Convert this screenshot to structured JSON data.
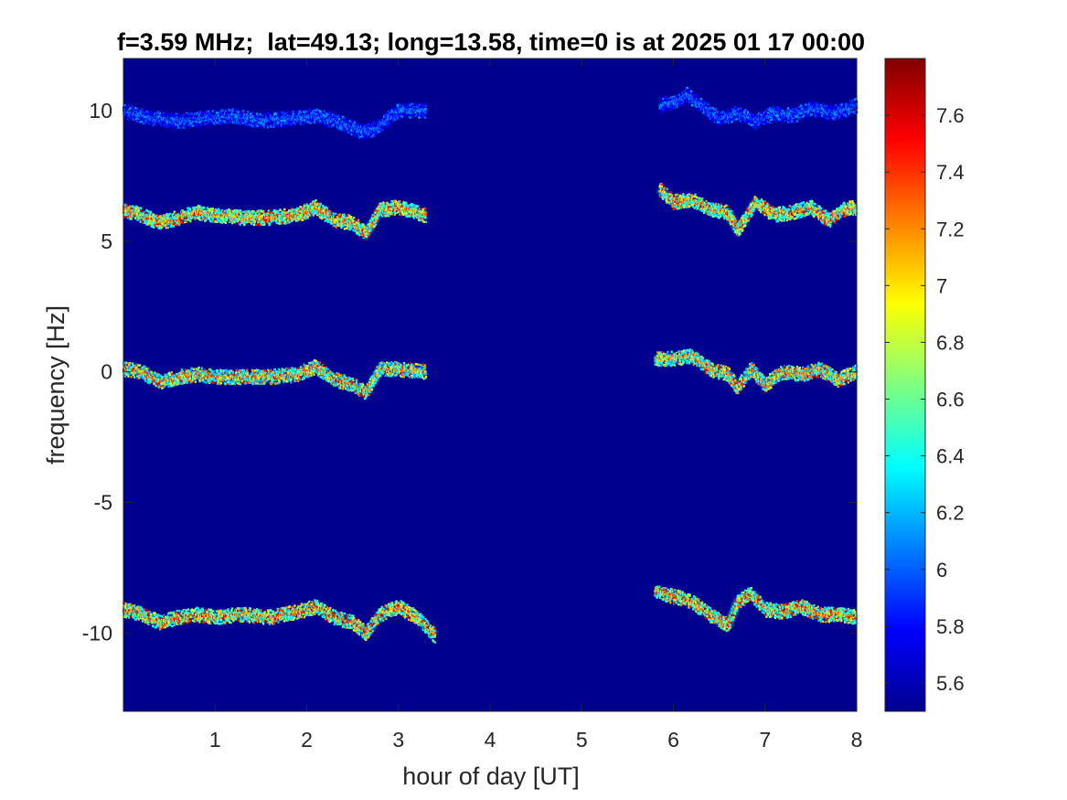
{
  "chart_data": {
    "type": "heatmap",
    "title": "f=3.59 MHz;  lat=49.13; long=13.58, time=0 is at 2025 01 17 00:00",
    "xlabel": "hour of day [UT]",
    "ylabel": "frequency [Hz]",
    "xlim": [
      0,
      8
    ],
    "ylim": [
      -13,
      12
    ],
    "x_ticks": [
      1,
      2,
      3,
      4,
      5,
      6,
      7,
      8
    ],
    "x_tick_labels": [
      "1",
      "2",
      "3",
      "4",
      "5",
      "6",
      "7",
      "8"
    ],
    "y_ticks": [
      10,
      5,
      0,
      -5,
      -10
    ],
    "y_tick_labels": [
      "10",
      "5",
      "0",
      "-5",
      "-10"
    ],
    "colorbar": {
      "colormap": "jet",
      "clim": [
        5.5,
        7.8
      ],
      "ticks": [
        7.6,
        7.4,
        7.2,
        7,
        6.8,
        6.6,
        6.4,
        6.2,
        6,
        5.8,
        5.6
      ],
      "tick_labels": [
        "7.6",
        "7.4",
        "7.2",
        "7",
        "6.8",
        "6.6",
        "6.4",
        "6.2",
        "6",
        "5.8",
        "5.6"
      ]
    },
    "background_value": 5.5,
    "traces": [
      {
        "segment": "early",
        "x_range": [
          0,
          3.3
        ],
        "intensity_range": [
          5.7,
          6.2
        ],
        "x": [
          0,
          0.3,
          0.6,
          0.9,
          1.2,
          1.5,
          1.8,
          2.1,
          2.4,
          2.6,
          2.75,
          3.0,
          3.3
        ],
        "y": [
          10.0,
          9.7,
          9.6,
          9.7,
          9.8,
          9.6,
          9.7,
          9.8,
          9.5,
          9.2,
          9.3,
          10.0,
          10.0
        ]
      },
      {
        "segment": "early",
        "x_range": [
          0,
          3.3
        ],
        "intensity_range": [
          6.3,
          7.7
        ],
        "x": [
          0,
          0.2,
          0.4,
          0.6,
          0.8,
          1.0,
          1.3,
          1.6,
          1.9,
          2.1,
          2.3,
          2.5,
          2.65,
          2.8,
          3.0,
          3.3
        ],
        "y": [
          6.2,
          6.0,
          5.7,
          5.9,
          6.1,
          6.0,
          5.9,
          5.9,
          6.0,
          6.3,
          5.8,
          5.7,
          5.3,
          6.2,
          6.3,
          6.0
        ]
      },
      {
        "segment": "early",
        "x_range": [
          0,
          3.3
        ],
        "intensity_range": [
          6.2,
          7.7
        ],
        "x": [
          0,
          0.2,
          0.4,
          0.6,
          0.8,
          1.0,
          1.3,
          1.6,
          1.9,
          2.1,
          2.3,
          2.5,
          2.65,
          2.8,
          3.0,
          3.3
        ],
        "y": [
          0.1,
          0.0,
          -0.4,
          -0.2,
          -0.1,
          -0.2,
          -0.2,
          -0.2,
          -0.1,
          0.2,
          -0.3,
          -0.5,
          -0.8,
          0.1,
          0.1,
          0.0
        ]
      },
      {
        "segment": "early",
        "x_range": [
          0,
          3.4
        ],
        "intensity_range": [
          6.3,
          7.8
        ],
        "x": [
          0,
          0.2,
          0.4,
          0.6,
          0.8,
          1.0,
          1.3,
          1.6,
          1.9,
          2.1,
          2.3,
          2.5,
          2.65,
          2.8,
          3.0,
          3.2,
          3.4
        ],
        "y": [
          -9.1,
          -9.3,
          -9.6,
          -9.4,
          -9.3,
          -9.4,
          -9.3,
          -9.4,
          -9.2,
          -9.0,
          -9.4,
          -9.6,
          -10.0,
          -9.3,
          -9.0,
          -9.4,
          -10.1
        ]
      },
      {
        "segment": "late",
        "x_range": [
          5.85,
          8
        ],
        "intensity_range": [
          5.7,
          6.2
        ],
        "x": [
          5.85,
          6.0,
          6.15,
          6.3,
          6.5,
          6.7,
          6.9,
          7.1,
          7.3,
          7.5,
          7.7,
          7.85,
          8.0
        ],
        "y": [
          10.2,
          10.3,
          10.6,
          10.2,
          9.7,
          9.9,
          9.6,
          9.9,
          9.8,
          10.1,
          9.9,
          10.0,
          10.2
        ]
      },
      {
        "segment": "late",
        "x_range": [
          5.85,
          8
        ],
        "intensity_range": [
          6.3,
          7.7
        ],
        "x": [
          5.85,
          6.0,
          6.2,
          6.4,
          6.6,
          6.7,
          6.9,
          7.1,
          7.3,
          7.5,
          7.7,
          7.85,
          8.0
        ],
        "y": [
          7.0,
          6.5,
          6.6,
          6.2,
          6.1,
          5.4,
          6.5,
          6.0,
          6.1,
          6.3,
          5.8,
          6.2,
          6.3
        ]
      },
      {
        "segment": "late",
        "x_range": [
          5.8,
          8
        ],
        "intensity_range": [
          6.2,
          7.7
        ],
        "x": [
          5.8,
          6.0,
          6.2,
          6.4,
          6.6,
          6.7,
          6.85,
          7.0,
          7.2,
          7.4,
          7.6,
          7.8,
          8.0
        ],
        "y": [
          0.5,
          0.5,
          0.6,
          0.1,
          -0.1,
          -0.6,
          0.1,
          -0.5,
          0.0,
          -0.1,
          0.1,
          -0.3,
          0.0
        ]
      },
      {
        "segment": "late",
        "x_range": [
          5.8,
          8
        ],
        "intensity_range": [
          6.3,
          7.8
        ],
        "x": [
          5.8,
          6.0,
          6.2,
          6.4,
          6.6,
          6.7,
          6.85,
          7.0,
          7.2,
          7.4,
          7.6,
          7.8,
          8.0
        ],
        "y": [
          -8.4,
          -8.6,
          -8.8,
          -9.3,
          -9.7,
          -8.8,
          -8.5,
          -9.1,
          -9.2,
          -9.0,
          -9.3,
          -9.3,
          -9.4
        ]
      }
    ]
  }
}
